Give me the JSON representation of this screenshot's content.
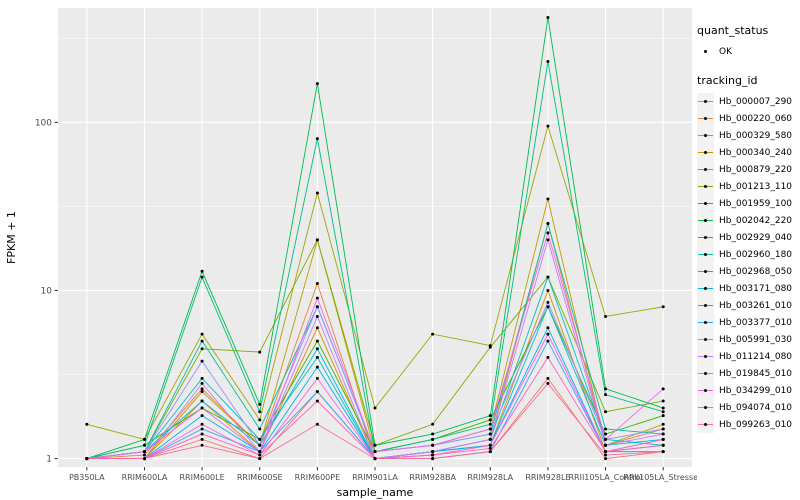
{
  "figure": {
    "background": "#ffffff",
    "panel_background": "#EBEBEB",
    "grid_color": "#FFFFFF",
    "tick_label_color": "#4D4D4D"
  },
  "legend": {
    "quant_status": {
      "title": "quant_status",
      "items": [
        {
          "label": "OK"
        }
      ]
    },
    "tracking": {
      "title": "tracking_id"
    }
  },
  "chart_data": {
    "type": "line",
    "title": "",
    "xlabel": "sample_name",
    "ylabel": "FPKM + 1",
    "y_scale": "log10",
    "y_ticks": [
      1,
      10,
      100
    ],
    "y_minor_ticks": [
      3.1623,
      31.623,
      316.23
    ],
    "ylim_log10": [
      -0.05,
      2.68
    ],
    "grid": true,
    "legend_position": "right",
    "point_color": "#000000",
    "categories": [
      "PB350LA",
      "RRIM600LA",
      "RRIM600LE",
      "RRIM600SE",
      "RRIM600PE",
      "RRIM901LA",
      "RRIM928BA",
      "RRIM928LA",
      "RRIM928LE",
      "RRII105LA_Control",
      "RRII105LA_Stressed"
    ],
    "series": [
      {
        "name": "Hb_000007_290",
        "color": "#F8766D",
        "values": [
          1,
          1,
          1.3,
          1,
          2.5,
          1,
          1,
          1.1,
          3,
          1,
          1.1
        ]
      },
      {
        "name": "Hb_000220_060",
        "color": "#EA8331",
        "values": [
          1,
          1.05,
          2.6,
          1.2,
          11,
          1,
          1.1,
          1.3,
          25,
          1.2,
          1.5
        ]
      },
      {
        "name": "Hb_000329_580",
        "color": "#D89000",
        "values": [
          1,
          1,
          2.2,
          1.1,
          6,
          1,
          1.05,
          1.2,
          10,
          1.1,
          1.3
        ]
      },
      {
        "name": "Hb_000340_240",
        "color": "#C09B00",
        "values": [
          1,
          1,
          2.5,
          1.2,
          20,
          1.1,
          1.2,
          1.5,
          35,
          1.2,
          1.6
        ]
      },
      {
        "name": "Hb_000879_220",
        "color": "#A3A500",
        "values": [
          1.6,
          1.3,
          5.5,
          1.7,
          38,
          2,
          5.5,
          4.7,
          95,
          7,
          8
        ]
      },
      {
        "name": "Hb_001213_110",
        "color": "#7CAE00",
        "values": [
          1,
          1.1,
          4.5,
          4.3,
          20,
          1.2,
          1.6,
          4.6,
          12,
          1.9,
          2.2
        ]
      },
      {
        "name": "Hb_001959_100",
        "color": "#39B600",
        "values": [
          1,
          1.2,
          2,
          1.3,
          5,
          1.1,
          1.3,
          1.7,
          8,
          1.4,
          1.8
        ]
      },
      {
        "name": "Hb_002042_220",
        "color": "#00BB4E",
        "values": [
          1,
          1.3,
          13,
          2.1,
          170,
          1.2,
          1.4,
          1.8,
          420,
          2.6,
          2
        ]
      },
      {
        "name": "Hb_002929_040",
        "color": "#00BF7D",
        "values": [
          1,
          1.2,
          12,
          1.9,
          80,
          1.1,
          1.3,
          1.6,
          230,
          2.4,
          1.9
        ]
      },
      {
        "name": "Hb_002960_180",
        "color": "#00C1A3",
        "values": [
          1,
          1.1,
          5,
          1.5,
          8,
          1.1,
          1.2,
          1.4,
          25,
          1.5,
          1.4
        ]
      },
      {
        "name": "Hb_002968_050",
        "color": "#00BFC4",
        "values": [
          1,
          1.1,
          3,
          1.3,
          4,
          1,
          1.1,
          1.3,
          12,
          1.3,
          1.2
        ]
      },
      {
        "name": "Hb_003171_080",
        "color": "#00BAE0",
        "values": [
          1,
          1.1,
          2.2,
          1.2,
          4.5,
          1,
          1.1,
          1.2,
          8,
          1.2,
          1.3
        ]
      },
      {
        "name": "Hb_003261_010",
        "color": "#00B0F6",
        "values": [
          1,
          1,
          1.8,
          1.1,
          3.5,
          1,
          1.1,
          1.2,
          6,
          1.1,
          1.2
        ]
      },
      {
        "name": "Hb_003377_010",
        "color": "#35A2FF",
        "values": [
          1,
          1,
          1.5,
          1.1,
          2.5,
          1,
          1,
          1.1,
          5,
          1.1,
          1.1
        ]
      },
      {
        "name": "Hb_005991_030",
        "color": "#9590FF",
        "values": [
          1,
          1.1,
          3.8,
          1.2,
          8,
          1.1,
          1.2,
          1.4,
          8.5,
          1.3,
          1.5
        ]
      },
      {
        "name": "Hb_011214_080",
        "color": "#C77CFF",
        "values": [
          1,
          1,
          2.8,
          1.1,
          7,
          1,
          1.1,
          1.3,
          20,
          1.2,
          1.4
        ]
      },
      {
        "name": "Hb_019845_010",
        "color": "#E76BF3",
        "values": [
          1,
          1.1,
          2,
          1.1,
          9,
          1.1,
          1.2,
          1.5,
          22,
          1.3,
          2.6
        ]
      },
      {
        "name": "Hb_034299_010",
        "color": "#FA62DB",
        "values": [
          1,
          1,
          1.6,
          1.05,
          3,
          1,
          1.05,
          1.2,
          5.5,
          1.1,
          1.3
        ]
      },
      {
        "name": "Hb_094074_010",
        "color": "#FF62BC",
        "values": [
          1,
          1,
          1.4,
          1.05,
          2.2,
          1,
          1.05,
          1.15,
          4,
          1.1,
          1.2
        ]
      },
      {
        "name": "Hb_099263_010",
        "color": "#FF6A98",
        "values": [
          1,
          1,
          1.2,
          1,
          1.6,
          1,
          1,
          1.1,
          2.8,
          1.05,
          1.1
        ]
      }
    ]
  }
}
